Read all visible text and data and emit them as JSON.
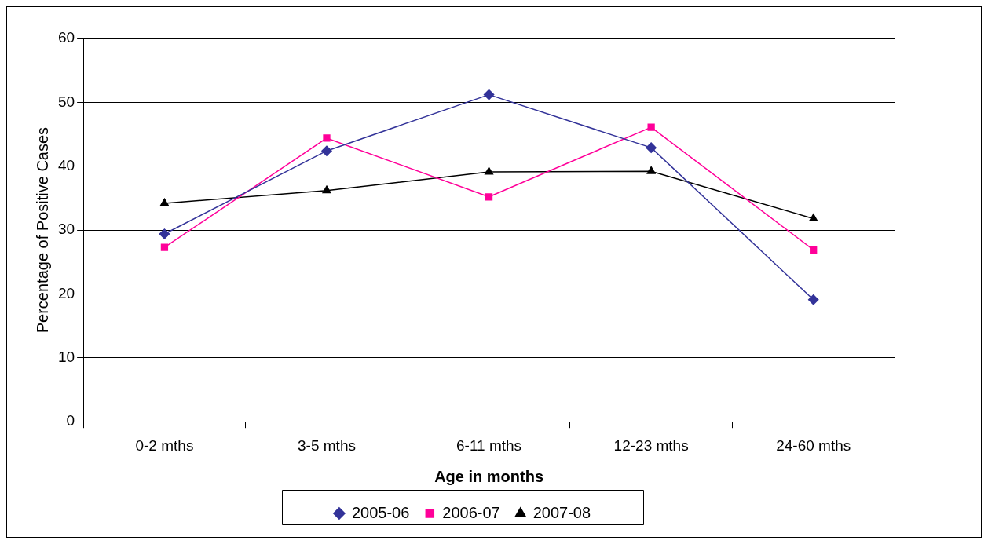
{
  "chart_data": {
    "type": "line",
    "xlabel": "Age in months",
    "ylabel": "Percentage of Positive Cases",
    "categories": [
      "0-2 mths",
      "3-5 mths",
      "6-11 mths",
      "12-23 mths",
      "24-60 mths"
    ],
    "series": [
      {
        "name": "2005-06",
        "color": "#333399",
        "marker": "diamond",
        "values": [
          29.4,
          42.4,
          51.2,
          42.9,
          19.1
        ]
      },
      {
        "name": "2006-07",
        "color": "#ff0099",
        "marker": "square",
        "values": [
          27.3,
          44.4,
          35.2,
          46.1,
          26.9
        ]
      },
      {
        "name": "2007-08",
        "color": "#000000",
        "marker": "triangle",
        "values": [
          34.2,
          36.2,
          39.1,
          39.2,
          31.8
        ]
      }
    ],
    "ylim": [
      0,
      60
    ],
    "yticks": [
      0,
      10,
      20,
      30,
      40,
      50,
      60
    ],
    "grid": "y",
    "legend": "bottom",
    "line_style": "solid"
  }
}
